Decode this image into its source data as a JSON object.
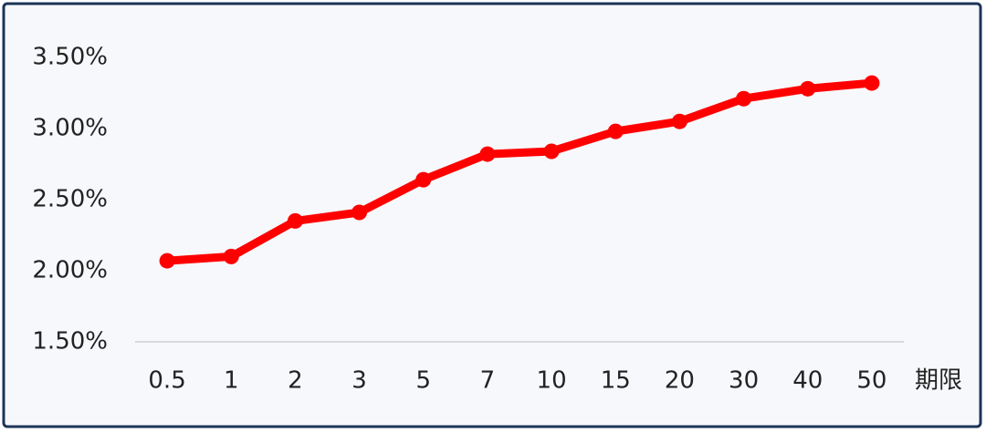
{
  "chart_data": {
    "type": "line",
    "x_label": "期限",
    "categories": [
      "0.5",
      "1",
      "2",
      "3",
      "5",
      "7",
      "10",
      "15",
      "20",
      "30",
      "40",
      "50"
    ],
    "values": [
      2.07,
      2.1,
      2.35,
      2.41,
      2.64,
      2.82,
      2.84,
      2.98,
      3.05,
      3.21,
      3.28,
      3.32
    ],
    "color": "#ff0000",
    "ylim": [
      1.5,
      3.5
    ],
    "yticks": [
      {
        "value": 1.5,
        "label": "1.50%"
      },
      {
        "value": 2.0,
        "label": "2.00%"
      },
      {
        "value": 2.5,
        "label": "2.50%"
      },
      {
        "value": 3.0,
        "label": "3.00%"
      },
      {
        "value": 3.5,
        "label": "3.50%"
      }
    ],
    "grid": false
  }
}
